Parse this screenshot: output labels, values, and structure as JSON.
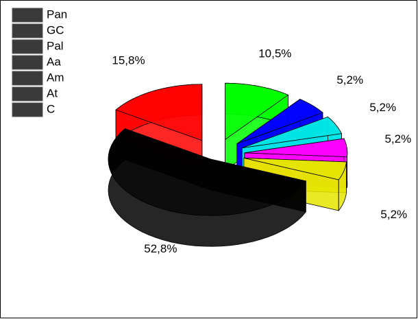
{
  "chart_data": {
    "type": "pie3d",
    "categories": [
      "Pan",
      "GC",
      "Pal",
      "Aa",
      "Am",
      "At",
      "C"
    ],
    "values": [
      15.8,
      10.5,
      5.2,
      5.2,
      5.2,
      5.2,
      52.8
    ],
    "value_labels": [
      "15,8%",
      "10,5%",
      "5,2%",
      "5,2%",
      "5,2%",
      "5,2%",
      "52,8%"
    ],
    "colors": [
      "#ff0000",
      "#00ff00",
      "#0000ff",
      "#00e5e5",
      "#ff00ff",
      "#e5e500",
      "#000000"
    ],
    "legend_swatch_color": "#3a3a3a",
    "legend": "top-left"
  }
}
